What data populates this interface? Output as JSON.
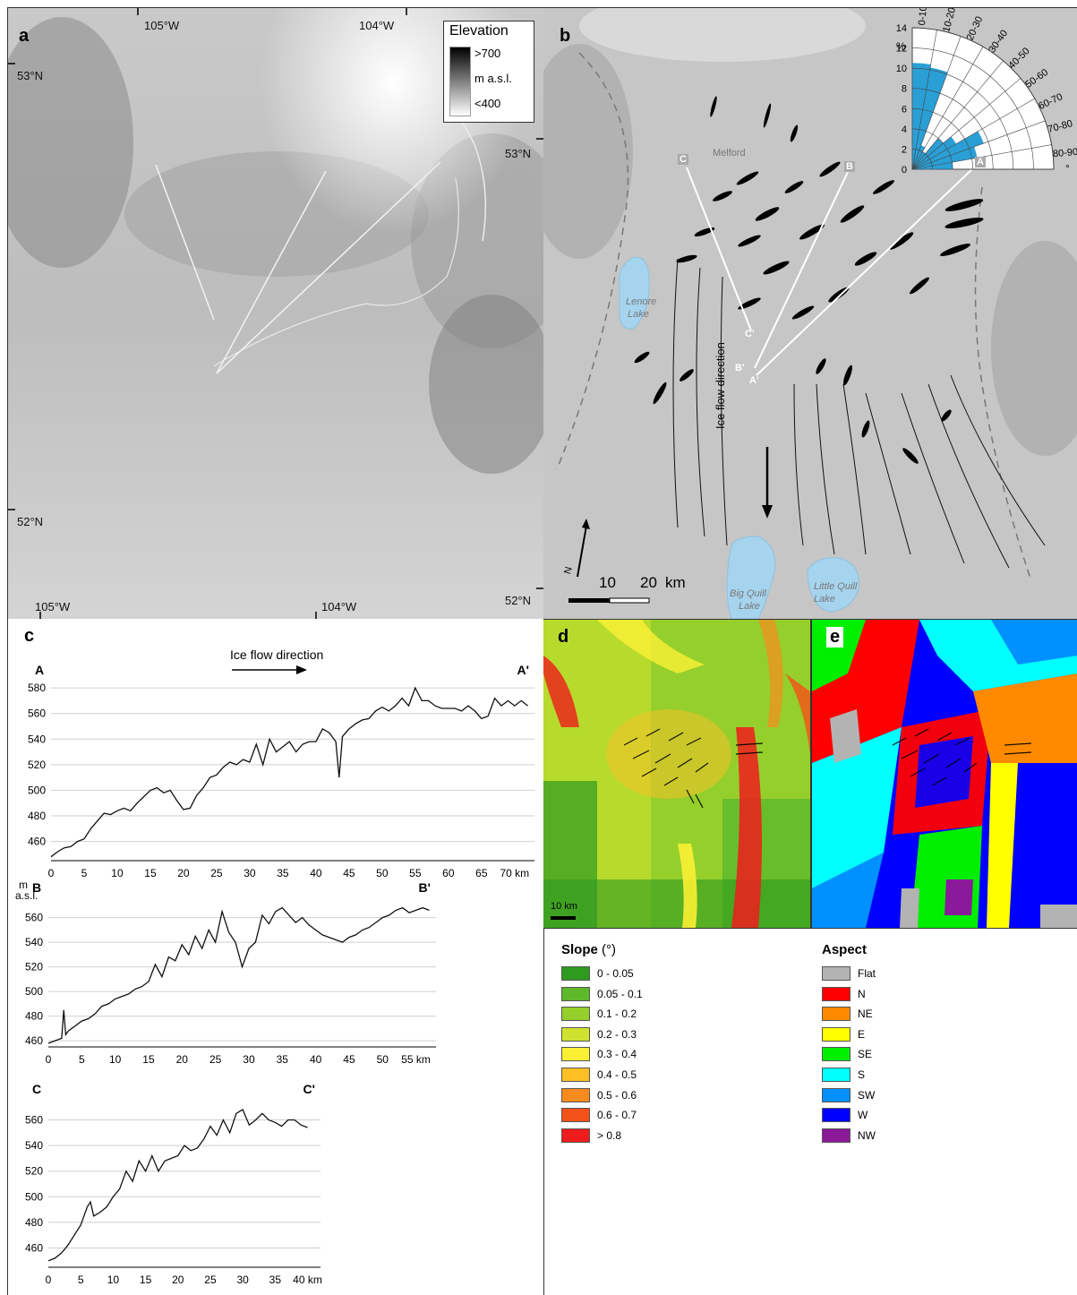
{
  "panel_a": {
    "label": "a",
    "coords": {
      "lon_left_top": "105°W",
      "lon_right_top": "104°W",
      "lat_top_left": "53°N",
      "lat_top_right": "53°N",
      "lat_bot_left": "52°N",
      "lat_bot_right": "52°N",
      "lon_left_bot": "105°W",
      "lon_right_bot": "104°W"
    },
    "legend": {
      "title": "Elevation",
      "high": ">700",
      "unit": "m a.s.l.",
      "low": "<400"
    }
  },
  "panel_b": {
    "label": "b",
    "places": {
      "melford": "Melford",
      "lenore_1": "Lenore",
      "lenore_2": "Lake",
      "big_quill_1": "Big Quill",
      "big_quill_2": "Lake",
      "little_quill_1": "Little Quill",
      "little_quill_2": "Lake"
    },
    "profile_labels": {
      "A": "A",
      "B": "B",
      "C": "C",
      "A_end": "A'",
      "B_end": "B'",
      "C_end": "C'"
    },
    "flow_label": "Ice flow direction",
    "north": "N",
    "scale": {
      "ten": "10",
      "twenty": "20",
      "unit": "km"
    },
    "rose": {
      "percent_label": "%",
      "degree_label": "°",
      "radial_ticks": [
        "0",
        "2",
        "4",
        "6",
        "8",
        "10",
        "12",
        "14"
      ],
      "sector_labels": [
        "0-10",
        "10-20",
        "20-30",
        "30-40",
        "40-50",
        "50-60",
        "60-70",
        "70-80",
        "80-90"
      ],
      "values_percent": [
        10.5,
        10.2,
        2.5,
        2.0,
        4.0,
        5.0,
        7.5,
        6.5,
        4.0
      ],
      "color": "#2a9fd6"
    }
  },
  "panel_c": {
    "label": "c",
    "flow_label": "Ice flow direction",
    "y_unit_1": "m",
    "y_unit_2": "a.s.l."
  },
  "chart_data": [
    {
      "type": "line",
      "title": "",
      "start_label": "A",
      "end_label": "A'",
      "xlabel": "km",
      "ylabel": "m a.s.l.",
      "xlim": [
        0,
        73
      ],
      "ylim": [
        445,
        585
      ],
      "xticks": [
        0,
        5,
        10,
        15,
        20,
        25,
        30,
        35,
        40,
        45,
        50,
        55,
        60,
        65,
        70
      ],
      "yticks": [
        460,
        480,
        500,
        520,
        540,
        560,
        580
      ],
      "x": [
        0,
        1,
        2,
        3,
        4,
        5,
        6,
        7,
        8,
        9,
        10,
        11,
        12,
        13,
        14,
        15,
        16,
        17,
        18,
        19,
        20,
        21,
        22,
        23,
        24,
        25,
        26,
        27,
        28,
        29,
        30,
        31,
        32,
        33,
        34,
        35,
        36,
        37,
        38,
        39,
        40,
        41,
        42,
        43,
        43.5,
        44,
        45,
        46,
        47,
        48,
        49,
        50,
        51,
        52,
        53,
        54,
        55,
        56,
        57,
        58,
        59,
        60,
        61,
        62,
        63,
        64,
        65,
        66,
        67,
        68,
        69,
        70,
        71,
        72
      ],
      "y": [
        448,
        452,
        455,
        456,
        460,
        462,
        470,
        476,
        482,
        481,
        484,
        486,
        484,
        490,
        495,
        500,
        502,
        498,
        500,
        492,
        485,
        486,
        496,
        502,
        510,
        512,
        518,
        522,
        520,
        524,
        522,
        536,
        520,
        540,
        530,
        534,
        538,
        530,
        536,
        538,
        538,
        548,
        545,
        538,
        510,
        542,
        548,
        552,
        555,
        556,
        562,
        565,
        562,
        566,
        572,
        566,
        580,
        570,
        570,
        566,
        564,
        564,
        564,
        562,
        566,
        562,
        556,
        558,
        572,
        566,
        570,
        566,
        570,
        566
      ]
    },
    {
      "type": "line",
      "title": "",
      "start_label": "B",
      "end_label": "B'",
      "xlabel": "km",
      "ylabel": "m a.s.l.",
      "xlim": [
        0,
        58
      ],
      "ylim": [
        455,
        575
      ],
      "xticks": [
        0,
        5,
        10,
        15,
        20,
        25,
        30,
        35,
        40,
        45,
        50,
        55
      ],
      "yticks": [
        460,
        480,
        500,
        520,
        540,
        560
      ],
      "x": [
        0,
        1,
        2,
        2.3,
        2.6,
        3,
        4,
        5,
        6,
        7,
        8,
        9,
        10,
        11,
        12,
        13,
        14,
        15,
        16,
        17,
        18,
        19,
        20,
        21,
        22,
        23,
        24,
        25,
        26,
        27,
        28,
        29,
        30,
        31,
        32,
        33,
        34,
        35,
        36,
        37,
        38,
        39,
        40,
        41,
        42,
        43,
        44,
        45,
        46,
        47,
        48,
        49,
        50,
        51,
        52,
        53,
        54,
        55,
        56,
        57
      ],
      "y": [
        458,
        460,
        462,
        485,
        465,
        468,
        472,
        476,
        478,
        482,
        488,
        490,
        494,
        496,
        498,
        502,
        504,
        508,
        522,
        512,
        528,
        525,
        538,
        530,
        545,
        535,
        550,
        540,
        565,
        548,
        540,
        520,
        535,
        540,
        562,
        555,
        565,
        568,
        562,
        556,
        560,
        554,
        550,
        546,
        544,
        542,
        540,
        544,
        546,
        550,
        552,
        556,
        560,
        562,
        566,
        568,
        564,
        566,
        568,
        566
      ]
    },
    {
      "type": "line",
      "title": "",
      "start_label": "C",
      "end_label": "C'",
      "xlabel": "km",
      "ylabel": "m a.s.l.",
      "xlim": [
        0,
        42
      ],
      "ylim": [
        445,
        575
      ],
      "xticks": [
        0,
        5,
        10,
        15,
        20,
        25,
        30,
        35,
        40
      ],
      "yticks": [
        460,
        480,
        500,
        520,
        540,
        560
      ],
      "x": [
        0,
        1,
        2,
        3,
        4,
        5,
        6,
        6.5,
        7,
        8,
        9,
        10,
        11,
        12,
        13,
        14,
        15,
        16,
        17,
        18,
        19,
        20,
        21,
        22,
        23,
        24,
        25,
        26,
        27,
        28,
        29,
        30,
        31,
        32,
        33,
        34,
        35,
        36,
        37,
        38,
        39,
        40
      ],
      "y": [
        450,
        452,
        456,
        462,
        470,
        478,
        492,
        496,
        485,
        488,
        492,
        500,
        506,
        520,
        512,
        528,
        520,
        532,
        520,
        528,
        530,
        532,
        540,
        536,
        538,
        545,
        555,
        548,
        560,
        550,
        565,
        568,
        556,
        560,
        565,
        560,
        558,
        555,
        560,
        560,
        556,
        554
      ]
    }
  ],
  "panel_d": {
    "label": "d",
    "scale_label": "10 km",
    "legend_title": "Slope",
    "legend_unit": "(°)",
    "classes": [
      {
        "label": "0 - 0.05",
        "color": "#2e9a1f"
      },
      {
        "label": "0.05 - 0.1",
        "color": "#5db82a"
      },
      {
        "label": "0.1 - 0.2",
        "color": "#95cf2c"
      },
      {
        "label": "0.2 - 0.3",
        "color": "#cfe22f"
      },
      {
        "label": "0.3 - 0.4",
        "color": "#fbf034"
      },
      {
        "label": "0.4 - 0.5",
        "color": "#fdbf25"
      },
      {
        "label": "0.5 - 0.6",
        "color": "#f98a1e"
      },
      {
        "label": "0.6 - 0.7",
        "color": "#f45118"
      },
      {
        "label": "> 0.8",
        "color": "#ee1c1c"
      }
    ]
  },
  "panel_e": {
    "label": "e",
    "legend_title": "Aspect",
    "classes": [
      {
        "label": "Flat",
        "color": "#b3b3b3"
      },
      {
        "label": "N",
        "color": "#ff0000"
      },
      {
        "label": "NE",
        "color": "#ff8a00"
      },
      {
        "label": "E",
        "color": "#ffff00"
      },
      {
        "label": "SE",
        "color": "#00ee00"
      },
      {
        "label": "S",
        "color": "#00ffff"
      },
      {
        "label": "SW",
        "color": "#0090ff"
      },
      {
        "label": "W",
        "color": "#0000ff"
      },
      {
        "label": "NW",
        "color": "#8b1a9b"
      }
    ]
  }
}
